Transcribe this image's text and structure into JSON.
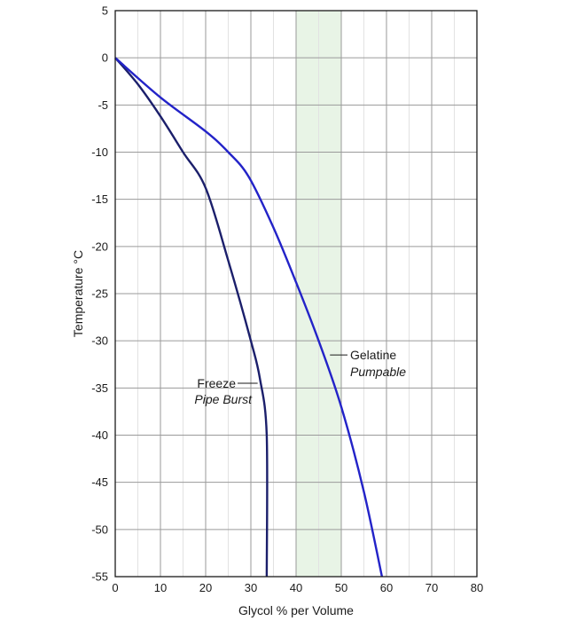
{
  "chart_data": {
    "type": "line",
    "xlabel": "Glycol % per  Volume",
    "ylabel": "Temperature °C",
    "xlim": [
      0,
      80
    ],
    "ylim": [
      -55,
      5
    ],
    "x_ticks": [
      0,
      10,
      20,
      30,
      40,
      50,
      60,
      70,
      80
    ],
    "y_ticks": [
      5,
      0,
      -5,
      -10,
      -15,
      -20,
      -25,
      -30,
      -35,
      -40,
      -45,
      -50,
      -55
    ],
    "grid": true,
    "highlight_band": {
      "x_from": 40,
      "x_to": 50,
      "color": "#e8f4e6"
    },
    "series": [
      {
        "color": "#1b1f6b",
        "points": [
          [
            0,
            0
          ],
          [
            5,
            -2.8
          ],
          [
            10,
            -6.2
          ],
          [
            15,
            -10
          ],
          [
            20,
            -13.8
          ],
          [
            25,
            -21.5
          ],
          [
            30,
            -30
          ],
          [
            32,
            -34
          ],
          [
            33.5,
            -40
          ],
          [
            33.5,
            -55
          ]
        ]
      },
      {
        "color": "#2323c8",
        "points": [
          [
            0,
            0
          ],
          [
            10,
            -4.2
          ],
          [
            20,
            -7.8
          ],
          [
            25,
            -10
          ],
          [
            29.5,
            -12.6
          ],
          [
            35,
            -18
          ],
          [
            40,
            -23.8
          ],
          [
            45,
            -30
          ],
          [
            50,
            -37
          ],
          [
            55,
            -46
          ],
          [
            59,
            -55
          ]
        ]
      }
    ],
    "annotations": [
      {
        "title": "Freeze",
        "subtitle": "Pipe Burst",
        "target": [
          31.5,
          -34.5
        ]
      },
      {
        "title": "Gelatine",
        "subtitle": "Pumpable",
        "target": [
          47.5,
          -31.5
        ]
      }
    ]
  },
  "colors": {
    "axis": "#1a1a1a",
    "major_grid": "#9a9a9a",
    "minor_grid": "#e2e2e2"
  }
}
